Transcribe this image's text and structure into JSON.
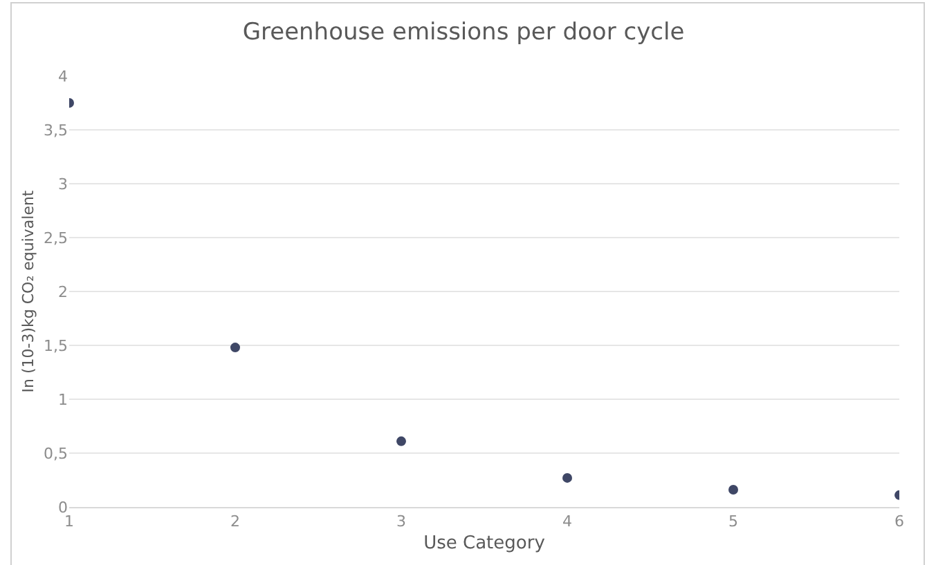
{
  "chart_data": {
    "type": "scatter",
    "title": "Greenhouse emissions per door cycle",
    "xlabel": "Use Category",
    "ylabel": "In (10-3)kg CO₂ equivalent",
    "x": [
      1,
      2,
      3,
      4,
      5,
      6
    ],
    "series": [
      {
        "color": "#3f4766",
        "values": [
          3.75,
          1.48,
          0.61,
          0.27,
          0.16,
          0.11
        ]
      }
    ],
    "xlim": [
      1,
      6
    ],
    "xticks": [
      1,
      2,
      3,
      4,
      5,
      6
    ],
    "ylim": [
      0,
      4
    ],
    "yticks": [
      0,
      {
        "value": 0.5,
        "label": "0,5"
      },
      1,
      {
        "value": 1.5,
        "label": "1,5"
      },
      2,
      {
        "value": 2.5,
        "label": "2,5"
      },
      3,
      {
        "value": 3.5,
        "label": "3,5"
      },
      4
    ],
    "grid": "y",
    "marker": "circle"
  }
}
